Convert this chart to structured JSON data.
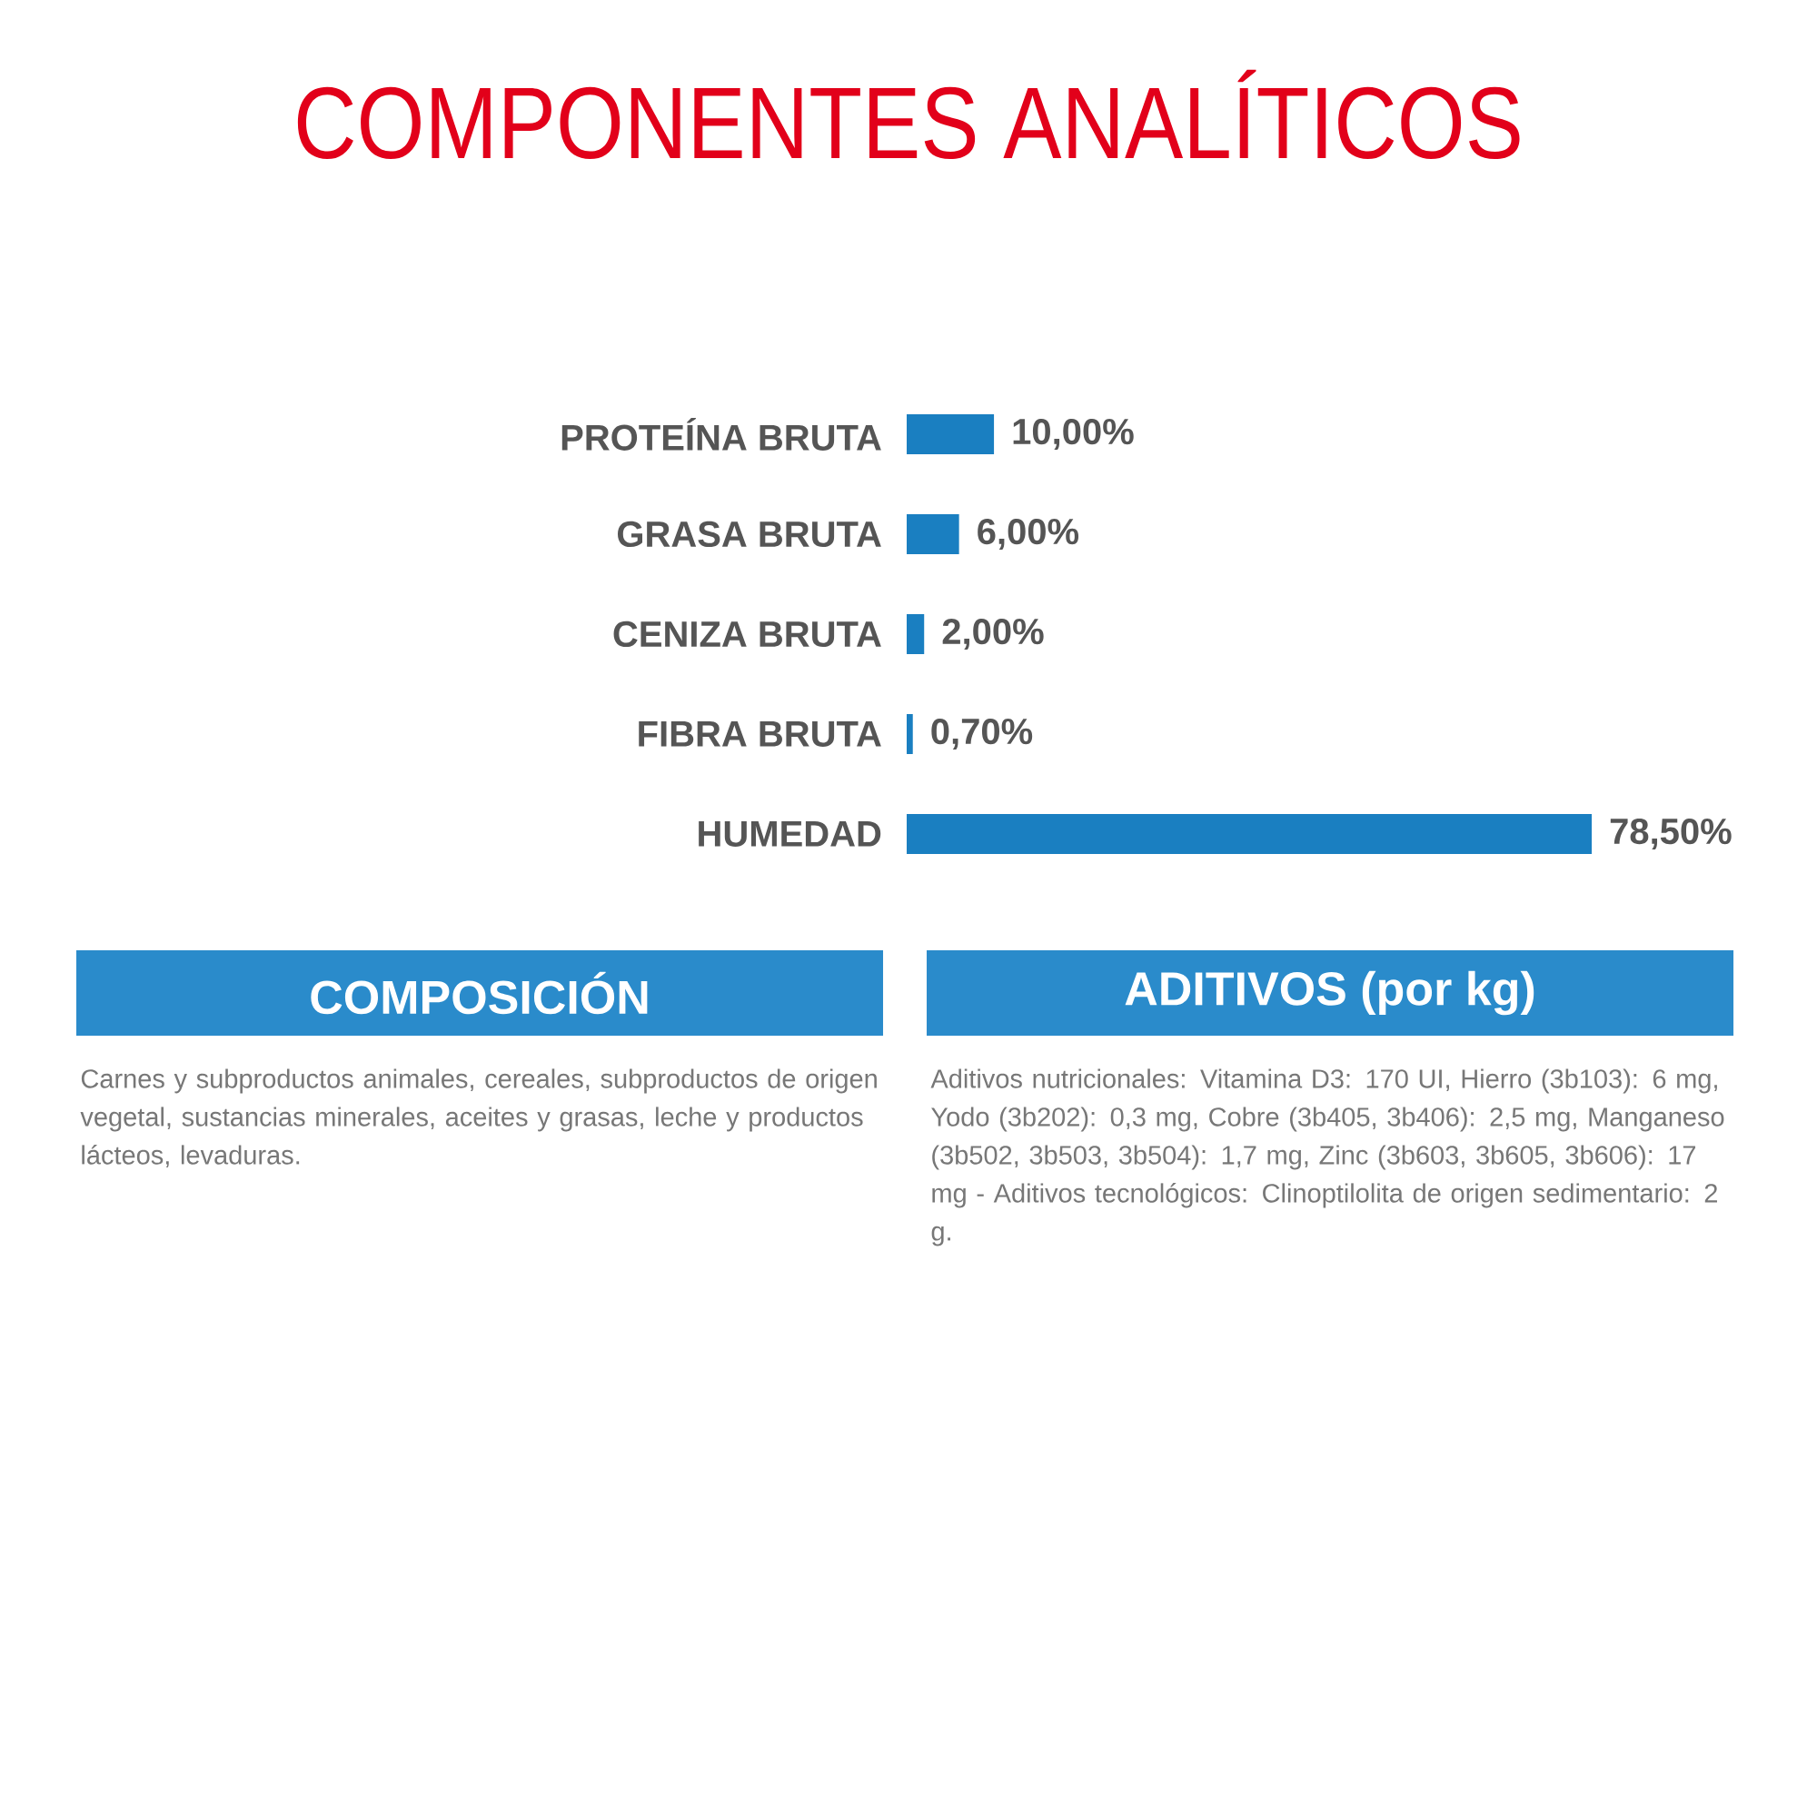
{
  "chart_data": [
    {
      "type": "bar",
      "orientation": "horizontal",
      "title": "COMPONENTES ANALÍTICOS",
      "categories": [
        "PROTEÍNA BRUTA",
        "GRASA BRUTA",
        "CENIZA BRUTA",
        "FIBRA BRUTA",
        "HUMEDAD"
      ],
      "values": [
        10,
        6,
        2,
        0.7,
        78.5
      ],
      "value_labels": [
        "10,00%",
        "6,00%",
        "2,00%",
        "0,70%",
        "78,50%"
      ],
      "color": "#1a7fc1"
    },
    {
      "type": "other",
      "title": "COMPOSICIÓN",
      "annotations": [
        "Carnes y subproductos animales, cereales, subproductos de origen vegetal, sustancias minerales, aceites y grasas, leche y productos lácteos, levaduras."
      ]
    },
    {
      "type": "other",
      "title": "ADITIVOS (por kg)",
      "annotations": [
        "Aditivos nutricionales: Vitamina D3: 170 UI, Hierro (3b103): 6 mg, Yodo (3b202): 0,3 mg, Cobre (3b405, 3b406): 2,5 mg, Manganeso (3b502, 3b503, 3b504): 1,7 mg, Zinc (3b603, 3b605, 3b606): 17 mg - Aditivos tecnológicos: Clinoptilolita de origen sedimentario: 2 g."
      ]
    }
  ]
}
